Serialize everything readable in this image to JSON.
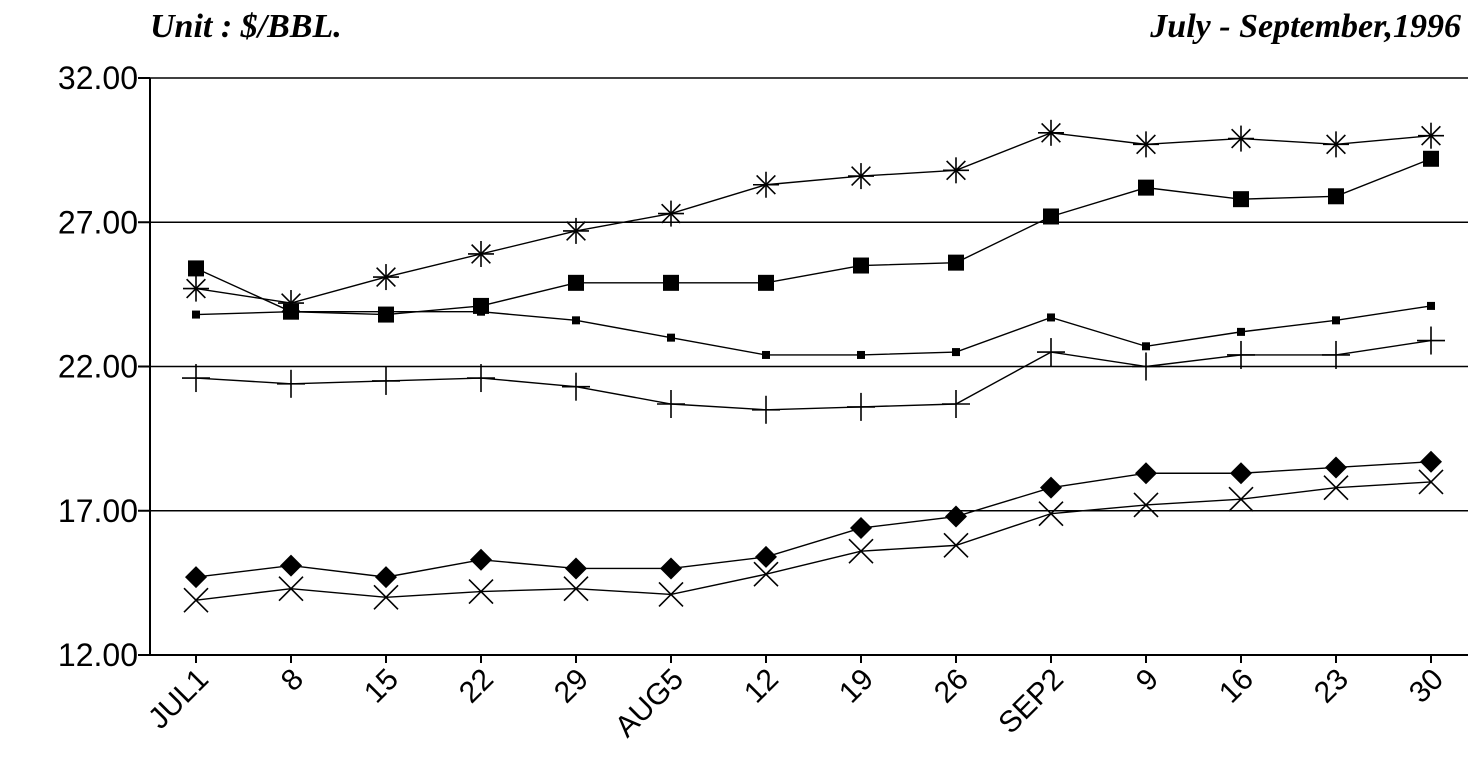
{
  "header": {
    "unit_label": "Unit : $/BBL.",
    "period_label": "July - September,1996"
  },
  "chart_data": {
    "type": "line",
    "title": "",
    "xlabel": "",
    "ylabel": "",
    "ylim": [
      12,
      32
    ],
    "yticks": [
      "12.00",
      "17.00",
      "22.00",
      "27.00",
      "32.00"
    ],
    "grid": "horizontal",
    "categories": [
      "JUL1",
      "8",
      "15",
      "22",
      "29",
      "AUG5",
      "12",
      "19",
      "26",
      "SEP2",
      "9",
      "16",
      "23",
      "30"
    ],
    "series": [
      {
        "marker": "asterisk",
        "values": [
          24.7,
          24.2,
          25.1,
          25.9,
          26.7,
          27.3,
          28.3,
          28.6,
          28.8,
          30.1,
          29.7,
          29.9,
          29.7,
          30.0
        ]
      },
      {
        "marker": "filled-square",
        "values": [
          25.4,
          23.9,
          23.8,
          24.1,
          24.9,
          24.9,
          24.9,
          25.5,
          25.6,
          27.2,
          28.2,
          27.8,
          27.9,
          29.2
        ]
      },
      {
        "marker": "small-square",
        "values": [
          23.8,
          23.9,
          23.9,
          23.9,
          23.6,
          23.0,
          22.4,
          22.4,
          22.5,
          23.7,
          22.7,
          23.2,
          23.6,
          24.1
        ]
      },
      {
        "marker": "plus",
        "values": [
          21.6,
          21.4,
          21.5,
          21.6,
          21.3,
          20.7,
          20.5,
          20.6,
          20.7,
          22.5,
          22.0,
          22.4,
          22.4,
          22.9
        ]
      },
      {
        "marker": "filled-diamond",
        "values": [
          14.7,
          15.1,
          14.7,
          15.3,
          15.0,
          15.0,
          15.4,
          16.4,
          16.8,
          17.8,
          18.3,
          18.3,
          18.5,
          18.7
        ]
      },
      {
        "marker": "x-cross",
        "values": [
          13.9,
          14.3,
          14.0,
          14.2,
          14.3,
          14.1,
          14.8,
          15.6,
          15.8,
          16.9,
          17.2,
          17.4,
          17.8,
          18.0
        ]
      }
    ]
  }
}
